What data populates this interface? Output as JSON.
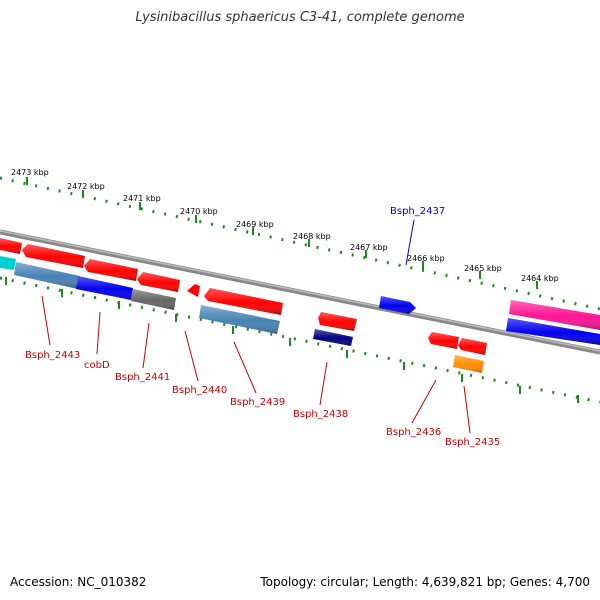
{
  "title": "Lysinibacillus sphaericus C3-41, complete genome",
  "footer": {
    "accession": "Accession: NC_010382",
    "topology": "Topology: circular; Length: 4,639,821 bp; Genes: 4,700"
  },
  "colors": {
    "backbone": "#888888",
    "ticks": "#1a8a1a",
    "label_default": "#cc0000",
    "label_highlight": "#0000cc"
  },
  "kbp_ticks": [
    "2473 kbp",
    "2472 kbp",
    "2471 kbp",
    "2470 kbp",
    "2469 kbp",
    "2468 kbp",
    "2467 kbp",
    "2466 kbp",
    "2465 kbp",
    "2464 kbp"
  ],
  "gene_labels": [
    {
      "text": "Bsph_2443",
      "color": "#cc0000"
    },
    {
      "text": "cobD",
      "color": "#cc0000"
    },
    {
      "text": "Bsph_2441",
      "color": "#cc0000"
    },
    {
      "text": "Bsph_2440",
      "color": "#cc0000"
    },
    {
      "text": "Bsph_2439",
      "color": "#cc0000"
    },
    {
      "text": "Bsph_2438",
      "color": "#cc0000"
    },
    {
      "text": "Bsph_2437",
      "color": "#0000cc"
    },
    {
      "text": "Bsph_2436",
      "color": "#cc0000"
    },
    {
      "text": "Bsph_2435",
      "color": "#cc0000"
    }
  ],
  "features": [
    {
      "name": "feature-red-1",
      "color": "#ff0000",
      "strand": "reverse"
    },
    {
      "name": "feature-cyan-1",
      "color": "#00d0d0",
      "strand": "reverse"
    },
    {
      "name": "feature-red-2",
      "color": "#ff0000",
      "strand": "reverse"
    },
    {
      "name": "feature-steelblue-1",
      "color": "#4682b4",
      "strand": "reverse"
    },
    {
      "name": "feature-red-3",
      "color": "#ff0000",
      "strand": "reverse"
    },
    {
      "name": "feature-blue-1",
      "color": "#0000ee",
      "strand": "reverse"
    },
    {
      "name": "feature-red-4",
      "color": "#ff0000",
      "strand": "reverse"
    },
    {
      "name": "feature-gray-1",
      "color": "#666666",
      "strand": "reverse"
    },
    {
      "name": "feature-red-5",
      "color": "#ff0000",
      "strand": "reverse"
    },
    {
      "name": "feature-red-6",
      "color": "#ff0000",
      "strand": "reverse"
    },
    {
      "name": "feature-steelblue-2",
      "color": "#4682b4",
      "strand": "reverse"
    },
    {
      "name": "feature-red-7",
      "color": "#ff0000",
      "strand": "reverse"
    },
    {
      "name": "feature-navy-1",
      "color": "#000080",
      "strand": "reverse"
    },
    {
      "name": "feature-blue-2",
      "color": "#0000ee",
      "strand": "forward"
    },
    {
      "name": "feature-red-8",
      "color": "#ff0000",
      "strand": "reverse"
    },
    {
      "name": "feature-red-9",
      "color": "#ff0000",
      "strand": "reverse"
    },
    {
      "name": "feature-orange-1",
      "color": "#ff8c00",
      "strand": "reverse"
    },
    {
      "name": "feature-magenta-1",
      "color": "#ff1493",
      "strand": "forward"
    },
    {
      "name": "feature-blue-3",
      "color": "#0000ee",
      "strand": "forward"
    }
  ]
}
